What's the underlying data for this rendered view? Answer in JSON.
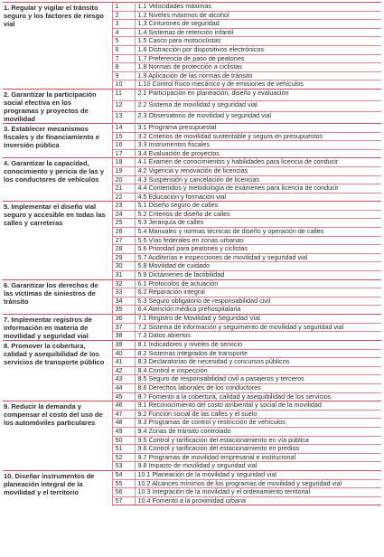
{
  "objectives": [
    {
      "title": "1. Regular y vigilar el tránsito seguro y los factores de riesgo vial",
      "actions": [
        {
          "n": "1",
          "t": "1.1 Velocidades máximas"
        },
        {
          "n": "2",
          "t": "1.2 Niveles máximos de alcohol"
        },
        {
          "n": "3",
          "t": "1.3 Cinturones de seguridad"
        },
        {
          "n": "4",
          "t": "1.4 Sistemas de retención infantil"
        },
        {
          "n": "5",
          "t": "1.5 Casco para motociclistas"
        },
        {
          "n": "6",
          "t": "1.6 Distracción por dispositivos electrónicos"
        },
        {
          "n": "7",
          "t": "1.7 Preferencia de paso de peatones"
        },
        {
          "n": "8",
          "t": "1.8 Normas de protección a ciclistas"
        },
        {
          "n": "9",
          "t": "1.9 Aplicación de las normas de tránsito"
        },
        {
          "n": "10",
          "t": "1.10 Control físico-mecánico y de emisiones de vehículos"
        }
      ]
    },
    {
      "title": "2. Garantizar la participación social efectiva en los programas y proyectos de movilidad",
      "actions": [
        {
          "n": "11",
          "t": "2.1 Participación en planeación, diseño y evaluación"
        },
        {
          "n": "12",
          "t": "2.2 Sistema de movilidad y seguridad vial"
        },
        {
          "n": "13",
          "t": "2.3    Observatorio de movilidad y seguridad vial"
        }
      ]
    },
    {
      "title": "3. Establecer mecanismos fiscales y de financiamiento e inversión pública",
      "actions": [
        {
          "n": "14",
          "t": "3.1 Programa presupuestal"
        },
        {
          "n": "15",
          "t": "3.2 Criterios de movilidad sustentable y segura en presupuestos"
        },
        {
          "n": "16",
          "t": "3.3 Instrumentos fiscales"
        },
        {
          "n": "17",
          "t": "3.4   Evaluación de proyectos"
        }
      ]
    },
    {
      "title": "4. Garantizar la capacidad, conocimiento y pericia de las y los conductores de vehículos",
      "actions": [
        {
          "n": "18",
          "t": "4.1 Examen de conocimientos y habilidades para licencia de conducir"
        },
        {
          "n": "19",
          "t": "4.2 Vigencia y renovación de licencias"
        },
        {
          "n": "20",
          "t": "4.3 Suspensión y cancelación de licencias"
        },
        {
          "n": "21",
          "t": "4.4 Contenidos y metodología de exámenes para licencia de conducir"
        },
        {
          "n": "22",
          "t": "4.5   Educación y formación vial"
        }
      ]
    },
    {
      "title": "5. Implementar el diseño vial seguro y accesible en todas las calles y carreteras",
      "actions": [
        {
          "n": "23",
          "t": "5.1 Diseño seguro de calles"
        },
        {
          "n": "24",
          "t": "5.2 Criterios de diseño de calles"
        },
        {
          "n": "25",
          "t": "5.3 Jerarquía de calles"
        },
        {
          "n": "26",
          "t": "5.4 Manuales y normas técnicas de diseño y operación de calles"
        },
        {
          "n": "27",
          "t": "5.5 Vías federales en zonas urbanas"
        },
        {
          "n": "28",
          "t": "5.6 Prioridad para peatones y ciclistas"
        },
        {
          "n": "29",
          "t": "5.7 Auditorías e inspecciones de movilidad y seguridad vial"
        },
        {
          "n": "30",
          "t": "5.8 Movilidad de cuidado"
        },
        {
          "n": "31",
          "t": "5.9   Dictámenes de factibilidad"
        }
      ]
    },
    {
      "title": "6. Garantizar los derechos de las víctimas de siniestros de tránsito",
      "actions": [
        {
          "n": "32",
          "t": "6.1 Protocolos de actuación"
        },
        {
          "n": "33",
          "t": "6.2 Reparación integral"
        },
        {
          "n": "34",
          "t": "6.3 Seguro obligatorio de responsabilidad civil"
        },
        {
          "n": "35",
          "t": "6.4   Atención médica prehospitalaria"
        }
      ]
    },
    {
      "title": "7. Implementar registros de información en materia de movilidad y seguridad vial",
      "actions": [
        {
          "n": "36",
          "t": "7.1 Registro de Movilidad y Seguridad Vial"
        },
        {
          "n": "37",
          "t": "7.2 Sistema de información y seguimiento de movilidad y seguridad vial"
        },
        {
          "n": "38",
          "t": "7.3    Datos abiertos"
        }
      ]
    },
    {
      "title": "8. Promover la cobertura, calidad y asequibilidad de los servicios de transporte público",
      "actions": [
        {
          "n": "39",
          "t": "8.1 Indicadores y niveles de servicio"
        },
        {
          "n": "40",
          "t": "8.2 Sistemas integrados de transporte"
        },
        {
          "n": "41",
          "t": "8.3 Declaratorias de necesidad y concursos públicos"
        },
        {
          "n": "42",
          "t": "8.4 Control e inspección"
        },
        {
          "n": "43",
          "t": "8.5 Seguro de responsabilidad civil a pasajeros y terceros"
        },
        {
          "n": "44",
          "t": "8.6 Derechos laborales de los conductores"
        },
        {
          "n": "45",
          "t": "8.7 Fomento a la cobertura, calidad y asequibilidad de los servicios"
        }
      ]
    },
    {
      "title": "9. Reducir la demanda y compensar el costo del uso de los automóviles particulares",
      "actions": [
        {
          "n": "46",
          "t": "9.1 Reconocimiento del costo ambiental y social de la movilidad"
        },
        {
          "n": "47",
          "t": "9.2 Función social de las calles y el suelo"
        },
        {
          "n": "48",
          "t": "9.3 Programas de control y restricción de vehículos"
        },
        {
          "n": "49",
          "t": "9.4 Zonas de tránsito controlado"
        },
        {
          "n": "50",
          "t": "9.5 Control y tarificación del estacionamiento en vía pública"
        },
        {
          "n": "51",
          "t": "9.6 Control y tarificación del estacionamiento en predios"
        },
        {
          "n": "52",
          "t": "9.7 Programas de movilidad empresarial e institucional"
        },
        {
          "n": "53",
          "t": "9.8   Impacto de movilidad y seguridad vial"
        }
      ]
    },
    {
      "title": "10. Diseñar instrumentos de planeación integral de la movilidad y el territorio",
      "actions": [
        {
          "n": "54",
          "t": "10.1 Planeación de la movilidad y seguridad vial"
        },
        {
          "n": "55",
          "t": "10.2 Alcances mínimos de los programas de movilidad y seguridad vial"
        },
        {
          "n": "56",
          "t": "10.3 Integración de la movilidad y el ordenamiento territorial"
        },
        {
          "n": "57",
          "t": "10.4 Fomento a la proximidad urbana"
        }
      ]
    }
  ]
}
